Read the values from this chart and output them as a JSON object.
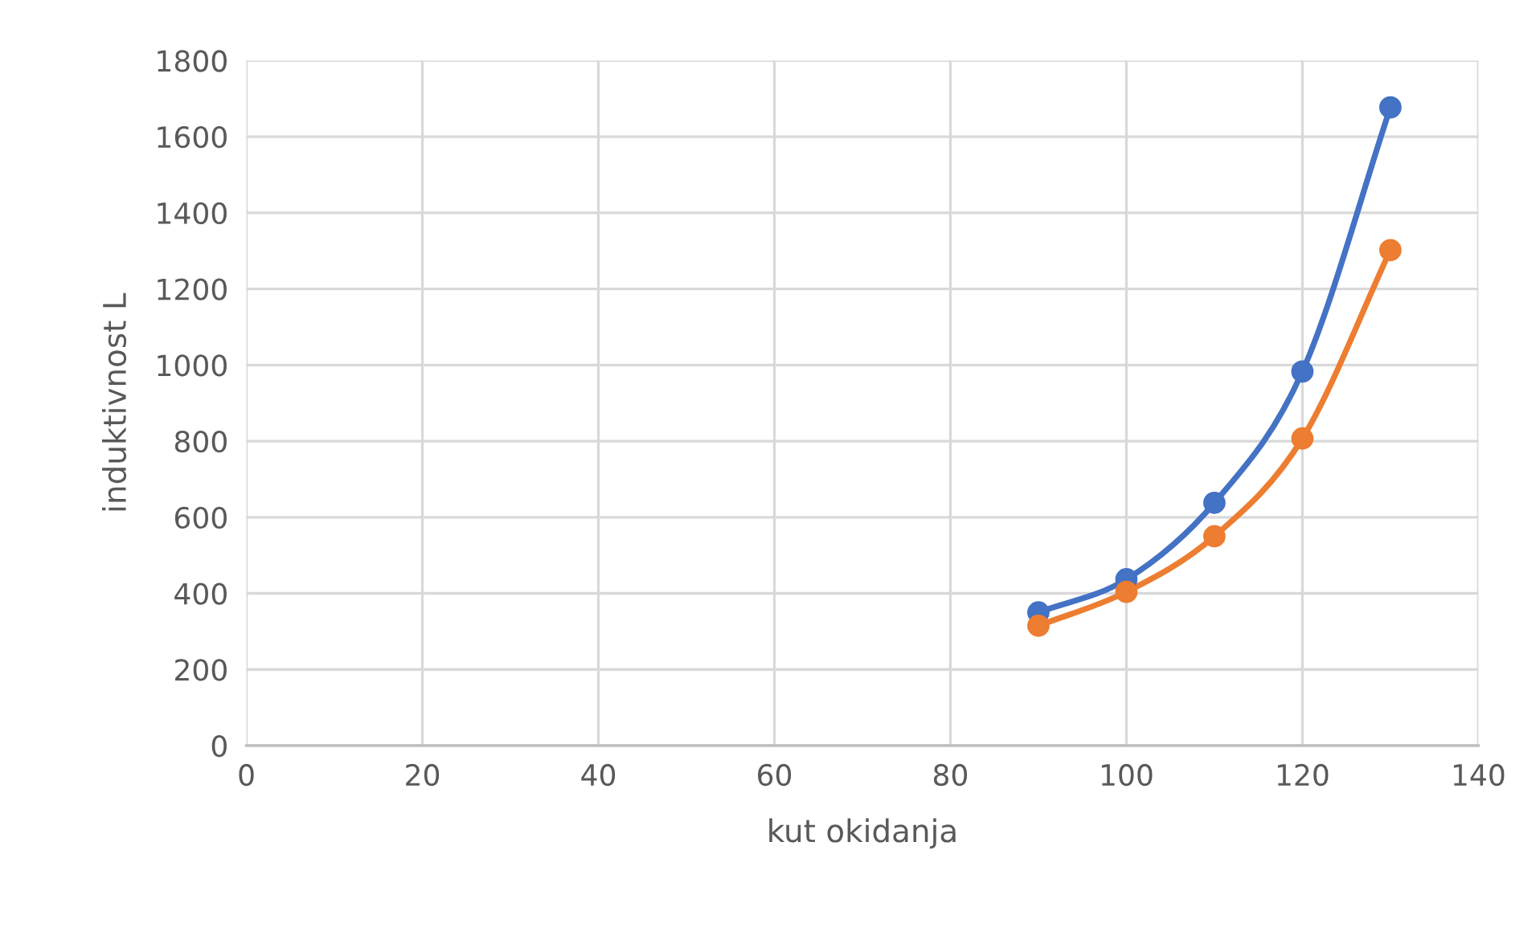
{
  "chart_data": {
    "type": "line",
    "xlabel": "kut okidanja",
    "ylabel": "induktivnost L",
    "x": [
      90,
      100,
      110,
      120,
      130
    ],
    "series": [
      {
        "color": "#4472c4",
        "values": [
          350,
          437,
          638,
          983,
          1677
        ]
      },
      {
        "color": "#ed7d31",
        "values": [
          315,
          404,
          550,
          807,
          1302
        ]
      }
    ],
    "xlim": [
      0,
      140
    ],
    "xticks": [
      0,
      20,
      40,
      60,
      80,
      100,
      120,
      140
    ],
    "ylim": [
      0,
      1800
    ],
    "yticks": [
      0,
      200,
      400,
      600,
      800,
      1000,
      1200,
      1400,
      1600,
      1800
    ],
    "grid": true,
    "marker": "circle",
    "line_style": "solid"
  }
}
